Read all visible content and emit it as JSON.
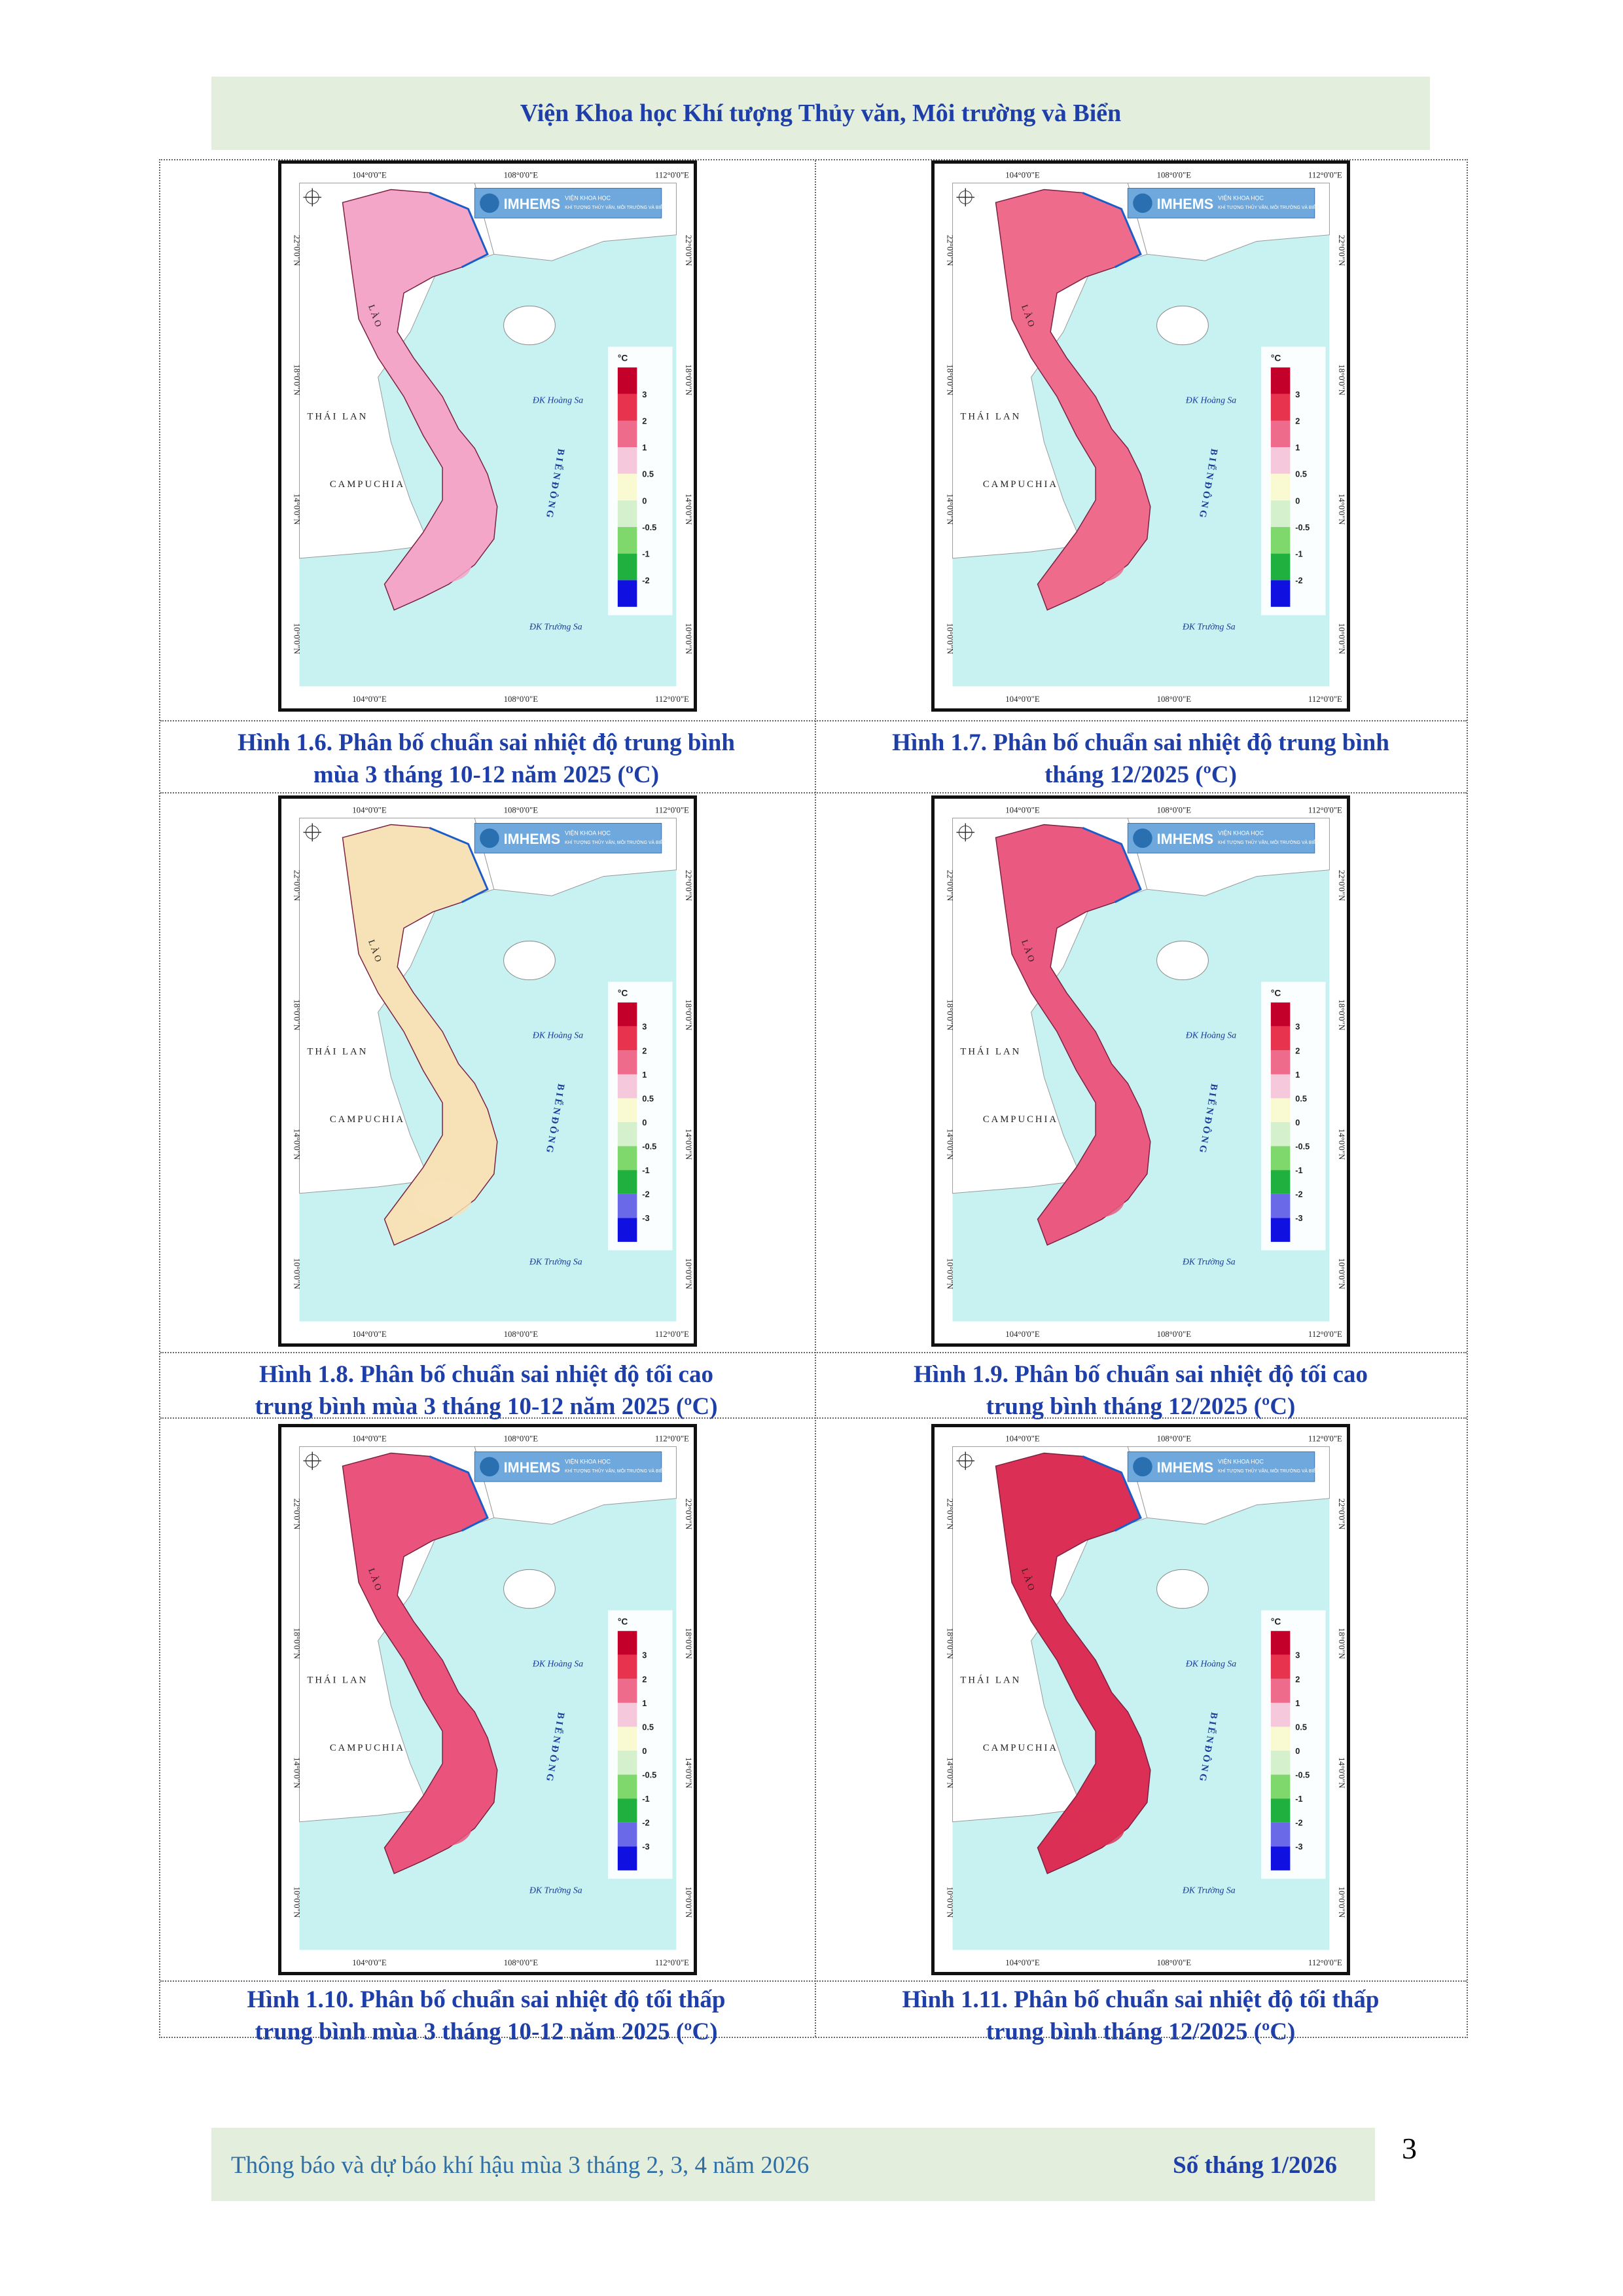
{
  "header": {
    "title": "Viện Khoa học Khí tượng Thủy văn, Môi trường và Biển"
  },
  "map_common": {
    "lon_labels": [
      "104°0'0\"E",
      "108°0'0\"E",
      "112°0'0\"E"
    ],
    "lat_labels": [
      "22°0'0\"N",
      "18°0'0\"N",
      "14°0'0\"N",
      "10°0'0\"N"
    ],
    "logo": "IMHEMS",
    "logo_sub1": "VIỆN KHOA HỌC",
    "logo_sub2": "KHÍ TƯỢNG THỦY VĂN, MÔI TRƯỜNG VÀ BIỂN",
    "place_lao": "L À O",
    "place_thailan": "THÁI LAN",
    "place_campuchia": "CAMPUCHIA",
    "place_hoangsa": "ĐK Hoàng Sa",
    "place_truongsa": "ĐK Trường Sa",
    "place_biendong": "B I Ể N   Đ Ô N G",
    "legend_unit": "°C"
  },
  "legend_colors": {
    "scale_a": [
      "#c2002a",
      "#e8334e",
      "#ee6b8b",
      "#f5c8dc",
      "#fafad2",
      "#d4f0cc",
      "#7fd86c",
      "#1fb040",
      "#1010e0"
    ],
    "scale_b": [
      "#c2002a",
      "#e8334e",
      "#ee6b8b",
      "#f5c8dc",
      "#fafad2",
      "#d4f0cc",
      "#7fd86c",
      "#1fb040",
      "#6a6ae8",
      "#1010e0"
    ]
  },
  "legend_labels": {
    "scale_a": [
      "3",
      "2",
      "1",
      "0.5",
      "0",
      "-0.5",
      "-1",
      "-2"
    ],
    "scale_b": [
      "3",
      "2",
      "1",
      "0.5",
      "0",
      "-0.5",
      "-1",
      "-2",
      "-3"
    ]
  },
  "figures": [
    {
      "caption_line1": "Hình 1.6. Phân bố chuẩn sai nhiệt độ trung bình",
      "caption_line2": "mùa 3 tháng 10-12 năm 2025 (ºC)",
      "land_color": "#f3a6c8",
      "scale": "scale_a"
    },
    {
      "caption_line1": "Hình 1.7. Phân bố chuẩn sai nhiệt độ trung bình",
      "caption_line2": "tháng 12/2025 (ºC)",
      "land_color": "#ee6b8b",
      "scale": "scale_a"
    },
    {
      "caption_line1": "Hình 1.8. Phân bố chuẩn sai nhiệt độ tối cao",
      "caption_line2": "trung bình mùa 3 tháng 10-12 năm 2025 (ºC)",
      "land_color": "#f7e2b8",
      "scale": "scale_b"
    },
    {
      "caption_line1": "Hình 1.9. Phân bố chuẩn sai nhiệt độ tối cao",
      "caption_line2": "trung bình tháng 12/2025 (ºC)",
      "land_color": "#ea5a80",
      "scale": "scale_b"
    },
    {
      "caption_line1": "Hình 1.10. Phân bố chuẩn sai nhiệt độ tối thấp",
      "caption_line2": "trung bình mùa 3 tháng 10-12 năm 2025 (ºC)",
      "land_color": "#e9537c",
      "scale": "scale_b"
    },
    {
      "caption_line1": "Hình 1.11. Phân bố chuẩn sai nhiệt độ tối thấp",
      "caption_line2": "trung bình tháng 12/2025 (ºC)",
      "land_color": "#dc2f55",
      "scale": "scale_b"
    }
  ],
  "footer": {
    "left": "Thông báo và dự báo khí hậu mùa 3 tháng 2, 3, 4 năm 2026",
    "right": "Số tháng 1/2026"
  },
  "page_number": "3"
}
